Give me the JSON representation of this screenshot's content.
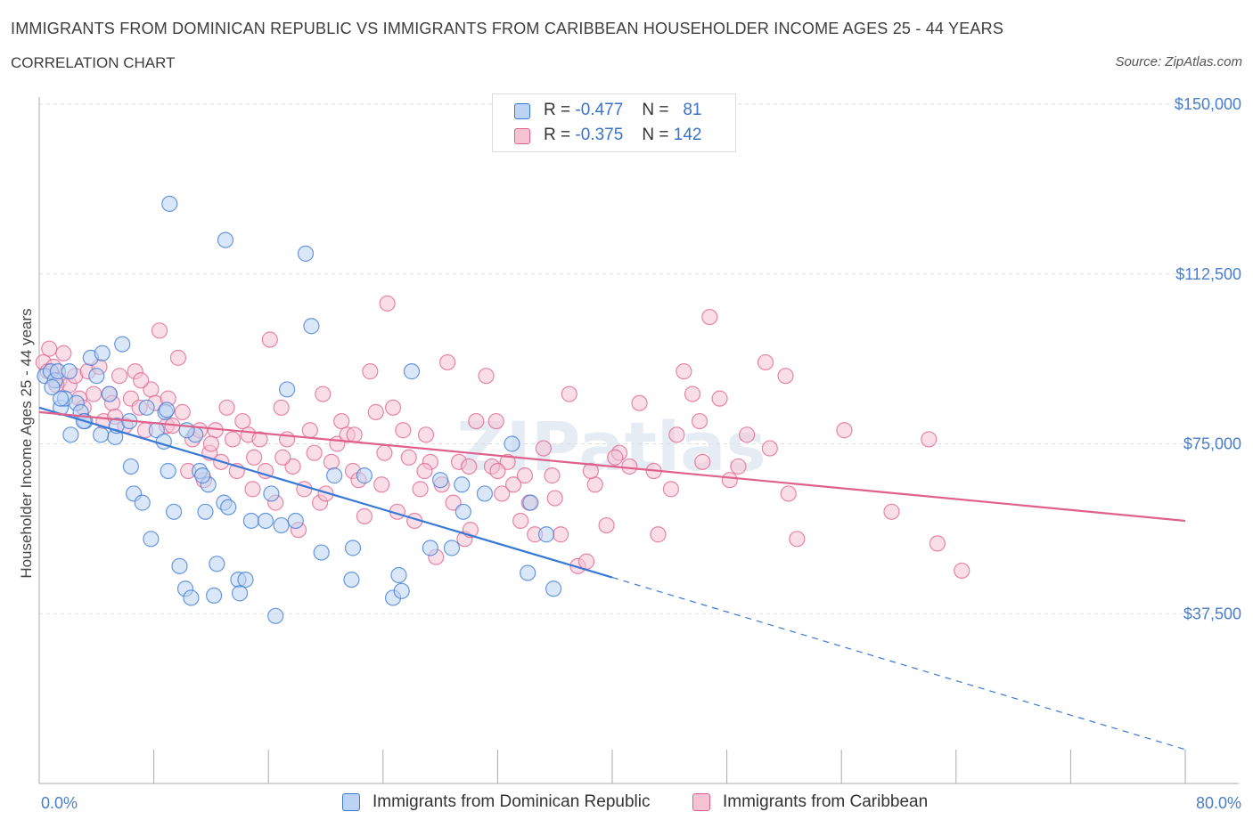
{
  "header": {
    "title": "IMMIGRANTS FROM DOMINICAN REPUBLIC VS IMMIGRANTS FROM CARIBBEAN HOUSEHOLDER INCOME AGES 25 - 44 YEARS",
    "subtitle": "CORRELATION CHART",
    "source": "Source: ZipAtlas.com"
  },
  "colors": {
    "blue": "#3a78d6",
    "blue_fill": "#bcd3f3",
    "pink": "#e0608c",
    "pink_fill": "#f6c3d3",
    "tick_text": "#4a7ec9",
    "grid": "#dddddd"
  },
  "legend": {
    "r_label": "R =",
    "n_label": "N =",
    "series": [
      {
        "r": "-0.477",
        "n": "81"
      },
      {
        "r": "-0.375",
        "n": "142"
      }
    ]
  },
  "watermark": "ZIPatlas",
  "chart_data": {
    "type": "scatter",
    "title": "IMMIGRANTS FROM DOMINICAN REPUBLIC VS IMMIGRANTS FROM CARIBBEAN HOUSEHOLDER INCOME AGES 25 - 44 YEARS",
    "ylabel": "Householder Income Ages 25 - 44 years",
    "xlabel": "",
    "xlim": [
      0,
      80
    ],
    "ylim": [
      0,
      150000
    ],
    "x_tick_labels": [
      "0.0%",
      "80.0%"
    ],
    "y_ticks": [
      37500,
      75000,
      112500,
      150000
    ],
    "y_tick_labels": [
      "$37,500",
      "$75,000",
      "$112,500",
      "$150,000"
    ],
    "grid": true,
    "legend_position": "bottom",
    "series": [
      {
        "name": "Immigrants from Dominican Republic",
        "R": -0.477,
        "N": 81,
        "trend": {
          "x0": 0,
          "y0": 83000,
          "x1": 40,
          "y1": 45500,
          "dashed_to_x": 80,
          "dashed_to_y": 7500
        },
        "points": [
          [
            0.4,
            90000
          ],
          [
            0.8,
            91000
          ],
          [
            1.1,
            89000
          ],
          [
            1.3,
            91000
          ],
          [
            1.5,
            83000
          ],
          [
            1.8,
            85000
          ],
          [
            2.2,
            77000
          ],
          [
            2.6,
            84000
          ],
          [
            2.9,
            82000
          ],
          [
            3.2,
            80000
          ],
          [
            3.6,
            94000
          ],
          [
            4.0,
            90000
          ],
          [
            4.4,
            95000
          ],
          [
            4.9,
            86000
          ],
          [
            5.3,
            76500
          ],
          [
            5.8,
            97000
          ],
          [
            6.4,
            70000
          ],
          [
            6.6,
            64000
          ],
          [
            7.2,
            62000
          ],
          [
            7.8,
            54000
          ],
          [
            8.2,
            78000
          ],
          [
            8.7,
            75500
          ],
          [
            8.8,
            82000
          ],
          [
            9.0,
            69000
          ],
          [
            9.1,
            128000
          ],
          [
            9.4,
            60000
          ],
          [
            9.8,
            48000
          ],
          [
            10.2,
            43000
          ],
          [
            10.6,
            41000
          ],
          [
            10.9,
            77000
          ],
          [
            11.2,
            69000
          ],
          [
            11.6,
            60000
          ],
          [
            11.8,
            66000
          ],
          [
            12.2,
            41500
          ],
          [
            12.4,
            48500
          ],
          [
            12.9,
            62000
          ],
          [
            13.0,
            120000
          ],
          [
            13.2,
            61000
          ],
          [
            13.9,
            45000
          ],
          [
            14.4,
            45000
          ],
          [
            14.8,
            58000
          ],
          [
            15.8,
            58000
          ],
          [
            16.5,
            37000
          ],
          [
            16.9,
            57000
          ],
          [
            17.3,
            87000
          ],
          [
            17.9,
            58000
          ],
          [
            18.6,
            117000
          ],
          [
            19.0,
            101000
          ],
          [
            19.7,
            51000
          ],
          [
            20.6,
            68000
          ],
          [
            21.8,
            45000
          ],
          [
            21.9,
            52000
          ],
          [
            22.7,
            68000
          ],
          [
            24.7,
            41000
          ],
          [
            25.1,
            46000
          ],
          [
            25.3,
            42500
          ],
          [
            26.0,
            91000
          ],
          [
            27.3,
            52000
          ],
          [
            28.0,
            67000
          ],
          [
            28.8,
            52000
          ],
          [
            29.5,
            66000
          ],
          [
            29.6,
            60000
          ],
          [
            31.1,
            64000
          ],
          [
            33.0,
            75000
          ],
          [
            34.1,
            46500
          ],
          [
            34.3,
            62000
          ],
          [
            35.4,
            55000
          ],
          [
            35.9,
            43000
          ],
          [
            2.1,
            91000
          ],
          [
            3.1,
            80000
          ],
          [
            5.4,
            79000
          ],
          [
            4.3,
            77000
          ],
          [
            8.9,
            82500
          ],
          [
            10.3,
            78000
          ],
          [
            1.5,
            85000
          ],
          [
            0.9,
            87500
          ],
          [
            6.3,
            80000
          ],
          [
            11.4,
            68000
          ],
          [
            14.0,
            42000
          ],
          [
            16.2,
            64000
          ],
          [
            7.5,
            83000
          ]
        ]
      },
      {
        "name": "Immigrants from Caribbean",
        "R": -0.375,
        "N": 142,
        "trend": {
          "x0": 0,
          "y0": 82000,
          "x1": 80,
          "y1": 58000
        },
        "points": [
          [
            0.3,
            93000
          ],
          [
            0.6,
            91000
          ],
          [
            1.0,
            92000
          ],
          [
            1.4,
            89000
          ],
          [
            1.7,
            95000
          ],
          [
            2.1,
            88000
          ],
          [
            2.5,
            90000
          ],
          [
            2.8,
            85000
          ],
          [
            3.1,
            83000
          ],
          [
            3.4,
            91000
          ],
          [
            3.8,
            86000
          ],
          [
            4.2,
            92000
          ],
          [
            4.5,
            80000
          ],
          [
            4.9,
            86000
          ],
          [
            5.1,
            84000
          ],
          [
            5.6,
            90000
          ],
          [
            6.0,
            79000
          ],
          [
            6.4,
            85000
          ],
          [
            6.7,
            91000
          ],
          [
            7.0,
            83000
          ],
          [
            7.4,
            78000
          ],
          [
            7.8,
            87000
          ],
          [
            8.1,
            84000
          ],
          [
            8.4,
            100000
          ],
          [
            8.9,
            79000
          ],
          [
            9.3,
            79000
          ],
          [
            9.7,
            94000
          ],
          [
            10.0,
            82000
          ],
          [
            10.4,
            69000
          ],
          [
            10.7,
            76000
          ],
          [
            11.2,
            78000
          ],
          [
            11.5,
            67000
          ],
          [
            11.9,
            73000
          ],
          [
            12.3,
            78000
          ],
          [
            12.7,
            71000
          ],
          [
            13.1,
            83000
          ],
          [
            13.5,
            76000
          ],
          [
            13.8,
            69000
          ],
          [
            14.2,
            80000
          ],
          [
            14.6,
            77000
          ],
          [
            15.0,
            72000
          ],
          [
            15.4,
            76000
          ],
          [
            15.8,
            69000
          ],
          [
            16.1,
            98000
          ],
          [
            16.5,
            62000
          ],
          [
            16.9,
            83000
          ],
          [
            17.3,
            76000
          ],
          [
            17.7,
            70000
          ],
          [
            18.1,
            56000
          ],
          [
            18.5,
            65000
          ],
          [
            18.9,
            78000
          ],
          [
            19.2,
            73000
          ],
          [
            19.6,
            62000
          ],
          [
            20.0,
            64000
          ],
          [
            20.4,
            71000
          ],
          [
            20.8,
            75000
          ],
          [
            21.1,
            80000
          ],
          [
            21.5,
            77000
          ],
          [
            21.9,
            69000
          ],
          [
            22.3,
            67000
          ],
          [
            22.7,
            59000
          ],
          [
            23.1,
            91000
          ],
          [
            23.5,
            82000
          ],
          [
            23.9,
            66000
          ],
          [
            24.3,
            106000
          ],
          [
            24.7,
            83000
          ],
          [
            25.0,
            60000
          ],
          [
            25.4,
            78000
          ],
          [
            25.8,
            72000
          ],
          [
            26.2,
            58000
          ],
          [
            26.6,
            65000
          ],
          [
            27.0,
            77000
          ],
          [
            27.3,
            71000
          ],
          [
            27.7,
            50000
          ],
          [
            28.1,
            66000
          ],
          [
            28.5,
            93000
          ],
          [
            28.9,
            62000
          ],
          [
            29.3,
            71000
          ],
          [
            29.7,
            54000
          ],
          [
            30.1,
            56000
          ],
          [
            30.5,
            80000
          ],
          [
            31.2,
            90000
          ],
          [
            31.6,
            70000
          ],
          [
            31.9,
            80000
          ],
          [
            32.3,
            64000
          ],
          [
            32.7,
            71000
          ],
          [
            33.1,
            66000
          ],
          [
            33.6,
            58000
          ],
          [
            34.2,
            62000
          ],
          [
            34.6,
            55000
          ],
          [
            35.2,
            74000
          ],
          [
            35.8,
            68000
          ],
          [
            36.4,
            55000
          ],
          [
            37.0,
            86000
          ],
          [
            37.6,
            48000
          ],
          [
            38.2,
            49000
          ],
          [
            38.8,
            66000
          ],
          [
            39.6,
            57000
          ],
          [
            40.5,
            73000
          ],
          [
            41.2,
            70000
          ],
          [
            41.9,
            84000
          ],
          [
            43.2,
            55000
          ],
          [
            44.1,
            65000
          ],
          [
            45.0,
            91000
          ],
          [
            45.6,
            86000
          ],
          [
            46.1,
            80000
          ],
          [
            46.8,
            103000
          ],
          [
            47.5,
            85000
          ],
          [
            48.2,
            67000
          ],
          [
            49.4,
            77000
          ],
          [
            50.7,
            93000
          ],
          [
            52.1,
            90000
          ],
          [
            52.3,
            64000
          ],
          [
            52.9,
            54000
          ],
          [
            56.2,
            78000
          ],
          [
            59.5,
            60000
          ],
          [
            62.1,
            76000
          ],
          [
            62.7,
            53000
          ],
          [
            64.4,
            47000
          ],
          [
            0.7,
            96000
          ],
          [
            1.2,
            88000
          ],
          [
            5.3,
            81000
          ],
          [
            7.1,
            89000
          ],
          [
            9.0,
            85000
          ],
          [
            12.0,
            75000
          ],
          [
            14.9,
            65000
          ],
          [
            17.0,
            72000
          ],
          [
            19.8,
            86000
          ],
          [
            22.0,
            77000
          ],
          [
            24.1,
            73000
          ],
          [
            26.9,
            69000
          ],
          [
            30.0,
            70000
          ],
          [
            32.0,
            69000
          ],
          [
            33.9,
            68000
          ],
          [
            36.0,
            63000
          ],
          [
            38.5,
            69000
          ],
          [
            40.2,
            72000
          ],
          [
            42.9,
            69000
          ],
          [
            44.5,
            77000
          ],
          [
            46.3,
            71000
          ],
          [
            48.8,
            70000
          ],
          [
            51.0,
            74000
          ]
        ]
      }
    ]
  },
  "bottom_legend": [
    {
      "label": "Immigrants from Dominican Republic"
    },
    {
      "label": "Immigrants from Caribbean"
    }
  ]
}
